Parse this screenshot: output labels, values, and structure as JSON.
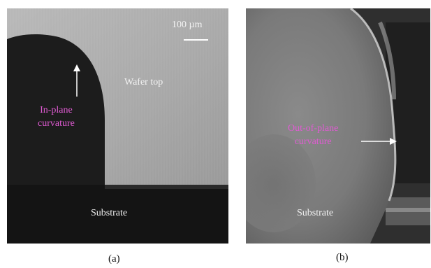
{
  "panel_a": {
    "scale_bar_label": "100 µm",
    "region_label_top": "Wafer top",
    "annotation": "In-plane\ncurvature",
    "annotation_line1": "In-plane",
    "annotation_line2": "curvature",
    "region_label_bottom": "Substrate",
    "caption": "(a)"
  },
  "panel_b": {
    "annotation_line1": "Out-of-plane",
    "annotation_line2": "curvature",
    "region_label_bottom": "Substrate",
    "caption": "(b)"
  },
  "colors": {
    "annotation_pink": "#e05bd3",
    "label_white": "#f2f2f2"
  }
}
